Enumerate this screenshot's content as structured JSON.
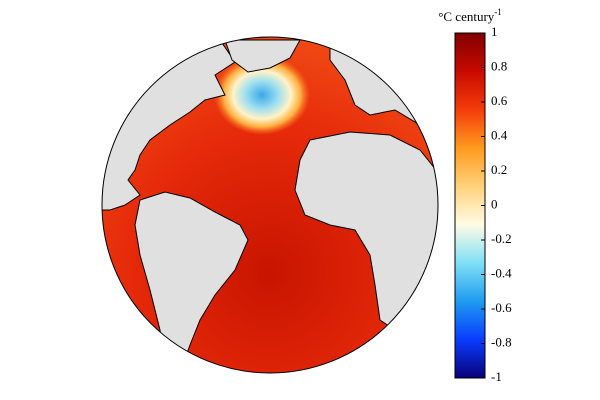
{
  "colorbar": {
    "title": "°C century",
    "title_superscript": "-1",
    "lim": [
      -1,
      1
    ],
    "ticks": [
      1,
      0.8,
      0.6,
      0.4,
      0.2,
      0,
      -0.2,
      -0.4,
      -0.6,
      -0.8,
      -1
    ],
    "colormap": [
      "#08007a",
      "#0a3cff",
      "#1e9bf0",
      "#7fe0f5",
      "#fffbe6",
      "#ffd27a",
      "#ff9a1e",
      "#f53c0a",
      "#c80a00",
      "#800000"
    ]
  }
}
